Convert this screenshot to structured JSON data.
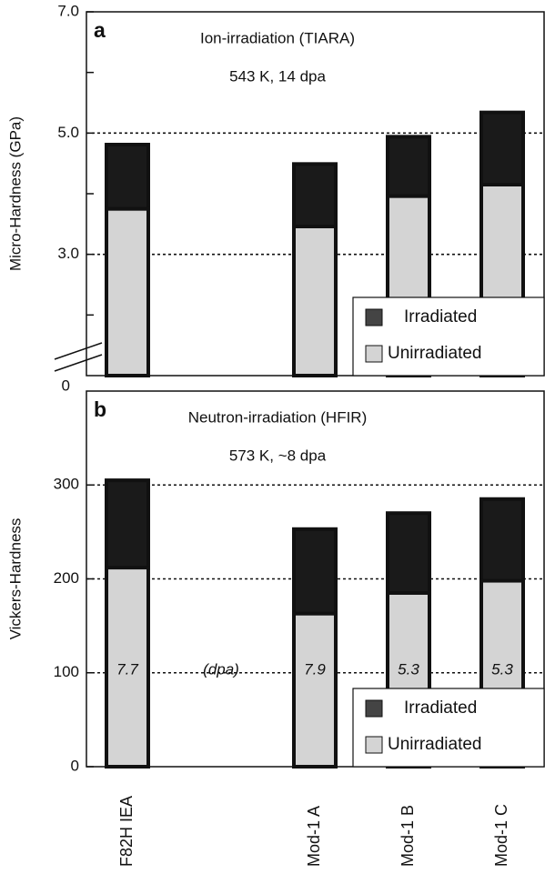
{
  "chart_data": [
    {
      "type": "bar",
      "panel_label": "a",
      "title": "Ion-irradiation (TIARA)",
      "subtitle": "543 K, 14 dpa",
      "y_label": "Micro-Hardness (GPa)",
      "ylim": [
        1,
        7
      ],
      "yticks": [
        {
          "value": 3,
          "label": "3.0"
        },
        {
          "value": 5,
          "label": "5.0"
        },
        {
          "value": 7,
          "label": "7.0"
        }
      ],
      "minor_yticks": [
        2,
        4,
        6
      ],
      "axis_break_label": "0",
      "grid": true,
      "legend": "lower right",
      "series": [
        {
          "name": "Irradiated",
          "color": "#1a1a1a",
          "values": [
            4.81,
            null,
            4.49,
            4.94,
            5.34
          ]
        },
        {
          "name": "Unirradiated",
          "color": "#d4d4d4",
          "values": [
            3.75,
            null,
            3.46,
            3.96,
            4.15
          ]
        }
      ]
    },
    {
      "type": "bar",
      "panel_label": "b",
      "title": "Neutron-irradiation (HFIR)",
      "subtitle": "573 K, ~8 dpa",
      "y_label": "Vickers-Hardness",
      "ylim": [
        0,
        400
      ],
      "yticks": [
        0,
        100,
        200,
        300
      ],
      "grid": true,
      "legend": "lower right",
      "categories": [
        "F82H IEA",
        null,
        "Mod-1 A",
        "Mod-1 B",
        "Mod-1 C"
      ],
      "dpa_labels": [
        "7.7",
        "(dpa)",
        "7.9",
        "5.3",
        "5.3"
      ],
      "series": [
        {
          "name": "Irradiated",
          "color": "#1a1a1a",
          "values": [
            305,
            null,
            253,
            270,
            285
          ]
        },
        {
          "name": "Unirradiated",
          "color": "#d4d4d4",
          "values": [
            212,
            null,
            163,
            185,
            198
          ]
        }
      ]
    }
  ]
}
